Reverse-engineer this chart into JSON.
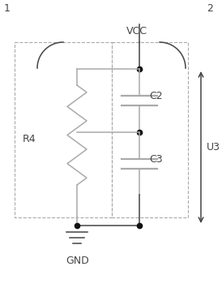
{
  "bg_color": "#ffffff",
  "line_color": "#aaaaaa",
  "dark_color": "#444444",
  "dot_color": "#111111",
  "dashed_color": "#aaaaaa",
  "labels": {
    "pin1": "1",
    "pin2": "2",
    "vcc": "VCC",
    "gnd": "GND",
    "r4": "R4",
    "c2": "C2",
    "c3": "C3",
    "u3": "U3"
  },
  "fig_width": 2.74,
  "fig_height": 3.55,
  "dpi": 100
}
